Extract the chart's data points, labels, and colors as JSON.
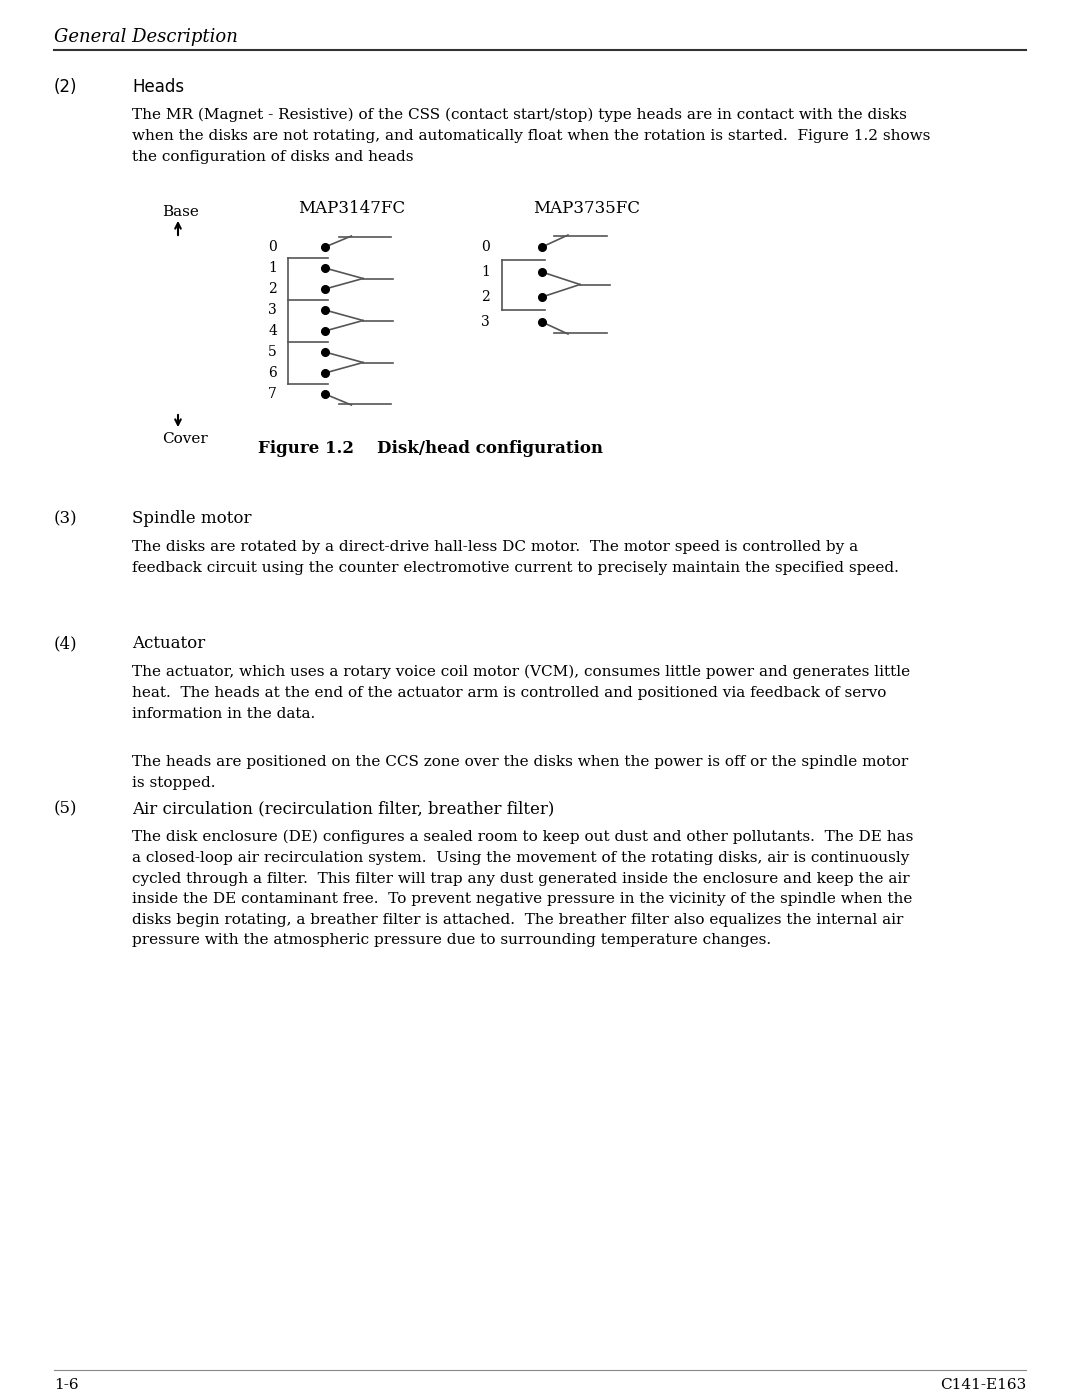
{
  "bg_color": "#ffffff",
  "title_italic": "General Description",
  "section_2_label": "(2)",
  "section_2_title": "Heads",
  "para1": "The MR (Magnet - Resistive) of the CSS (contact start/stop) type heads are in contact with the disks\nwhen the disks are not rotating, and automatically float when the rotation is started.  Figure 1.2 shows\nthe configuration of disks and heads",
  "base_label": "Base",
  "cover_label": "Cover",
  "map1_title": "MAP3147FC",
  "map2_title": "MAP3735FC",
  "figure_caption_bold": "Figure 1.2",
  "figure_caption_normal": "    Disk/head configuration",
  "section_3_label": "(3)",
  "section_3_title": "Spindle motor",
  "para3": "The disks are rotated by a direct-drive hall-less DC motor.  The motor speed is controlled by a\nfeedback circuit using the counter electromotive current to precisely maintain the specified speed.",
  "section_4_label": "(4)",
  "section_4_title": "Actuator",
  "para4a": "The actuator, which uses a rotary voice coil motor (VCM), consumes little power and generates little\nheat.  The heads at the end of the actuator arm is controlled and positioned via feedback of servo\ninformation in the data.",
  "para4b": "The heads are positioned on the CCS zone over the disks when the power is off or the spindle motor\nis stopped.",
  "section_5_label": "(5)",
  "section_5_title": "Air circulation (recirculation filter, breather filter)",
  "para5": "The disk enclosure (DE) configures a sealed room to keep out dust and other pollutants.  The DE has\na closed-loop air recirculation system.  Using the movement of the rotating disks, air is continuously\ncycled through a filter.  This filter will trap any dust generated inside the enclosure and keep the air\ninside the DE contaminant free.  To prevent negative pressure in the vicinity of the spindle when the\ndisks begin rotating, a breather filter is attached.  The breather filter also equalizes the internal air\npressure with the atmospheric pressure due to surrounding temperature changes.",
  "footer_left": "1-6",
  "footer_right": "C141-E163",
  "text_color": "#000000",
  "line_color": "#555555"
}
